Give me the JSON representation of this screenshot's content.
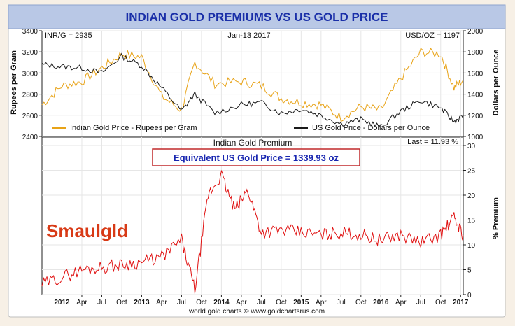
{
  "title": "INDIAN GOLD PREMIUMS VS US GOLD PRICE",
  "footer": "world gold charts © www.goldchartsrus.com",
  "logo_text": "Smaulgld",
  "colors": {
    "indian": "#e8a317",
    "us": "#1a1a1a",
    "premium": "#e01010",
    "title_text": "#1a2fa8",
    "title_bg": "#b9c8e6",
    "plot_border": "#222222",
    "callout_border": "#c0282a",
    "callout_text": "#1826b0",
    "logo": "#d83a16"
  },
  "top_panel": {
    "left_readout": "INR/G = 2935",
    "date_readout": "Jan-13  2017",
    "right_readout": "USD/OZ = 1197",
    "left_axis_title": "Rupees per Gram",
    "right_axis_title": "Dollars per Ounce",
    "left_ticks": [
      "3400",
      "3200",
      "3000",
      "2800",
      "2600",
      "2400"
    ],
    "right_ticks": [
      "2000",
      "1800",
      "1600",
      "1400",
      "1200",
      "1000"
    ],
    "legend_indian": "Indian Gold Price - Rupees per Gram",
    "legend_us": "US Gold Price - Dollars per Ounce"
  },
  "bottom_panel": {
    "title": "Indian Gold Premium",
    "last_readout": "Last = 11.93 %",
    "callout": "Equivalent US Gold Price = 1339.93 oz",
    "right_axis_title": "% Premium",
    "right_ticks": [
      "30",
      "25",
      "20",
      "15",
      "10",
      "5",
      "0"
    ]
  },
  "x_axis_ticks": [
    "2012",
    "Apr",
    "Jul",
    "Oct",
    "2013",
    "Apr",
    "Jul",
    "Oct",
    "2014",
    "Apr",
    "Jul",
    "Oct",
    "2015",
    "Apr",
    "Jul",
    "Oct",
    "2016",
    "Apr",
    "Jul",
    "Oct",
    "2017"
  ],
  "chart_data": [
    {
      "type": "line",
      "x_range": [
        "2011-10",
        "2017-01-13"
      ],
      "ylim_left": [
        2400,
        3400
      ],
      "ylim_right": [
        1000,
        2000
      ],
      "grid": true,
      "legend": "bottom",
      "series": [
        {
          "name": "Indian Gold Price - Rupees per Gram",
          "axis": "left",
          "x": [
            "2011-10",
            "2012-01",
            "2012-04",
            "2012-07",
            "2012-10",
            "2013-01",
            "2013-04",
            "2013-07",
            "2013-09",
            "2013-12",
            "2014-04",
            "2014-07",
            "2014-10",
            "2015-01",
            "2015-04",
            "2015-07",
            "2015-10",
            "2016-01",
            "2016-04",
            "2016-07",
            "2016-10",
            "2016-12",
            "2017-01-13"
          ],
          "values": [
            2700,
            2880,
            2920,
            3050,
            3180,
            3150,
            2780,
            2650,
            3100,
            2900,
            2920,
            2880,
            2760,
            2720,
            2700,
            2580,
            2680,
            2650,
            2950,
            3200,
            3180,
            2860,
            2935
          ]
        },
        {
          "name": "US Gold Price - Dollars per Ounce",
          "axis": "right",
          "x": [
            "2011-10",
            "2012-01",
            "2012-04",
            "2012-07",
            "2012-10",
            "2013-01",
            "2013-04",
            "2013-07",
            "2013-09",
            "2013-12",
            "2014-04",
            "2014-07",
            "2014-10",
            "2015-01",
            "2015-04",
            "2015-07",
            "2015-10",
            "2016-01",
            "2016-04",
            "2016-07",
            "2016-10",
            "2016-12",
            "2017-01-13"
          ],
          "values": [
            1680,
            1660,
            1650,
            1600,
            1760,
            1670,
            1460,
            1240,
            1400,
            1220,
            1300,
            1320,
            1220,
            1260,
            1200,
            1120,
            1160,
            1090,
            1240,
            1340,
            1270,
            1140,
            1197
          ]
        }
      ]
    },
    {
      "type": "line",
      "title": "Indian Gold Premium",
      "ylabel": "% Premium",
      "ylim": [
        0,
        30
      ],
      "grid": true,
      "series": [
        {
          "name": "Indian Gold Premium",
          "x": [
            "2011-10",
            "2012-01",
            "2012-04",
            "2012-07",
            "2012-10",
            "2013-01",
            "2013-04",
            "2013-07",
            "2013-09",
            "2013-11",
            "2014-01",
            "2014-03",
            "2014-05",
            "2014-07",
            "2014-10",
            "2015-01",
            "2015-04",
            "2015-07",
            "2015-10",
            "2016-01",
            "2016-04",
            "2016-07",
            "2016-10",
            "2016-12",
            "2017-01-13"
          ],
          "values": [
            2,
            3.5,
            5,
            5.5,
            6,
            6.5,
            7.5,
            11,
            1,
            20,
            24,
            17,
            21,
            12.5,
            13,
            12.5,
            12,
            12.5,
            12,
            11,
            12,
            10.5,
            12,
            15.5,
            11.93
          ]
        }
      ]
    }
  ]
}
